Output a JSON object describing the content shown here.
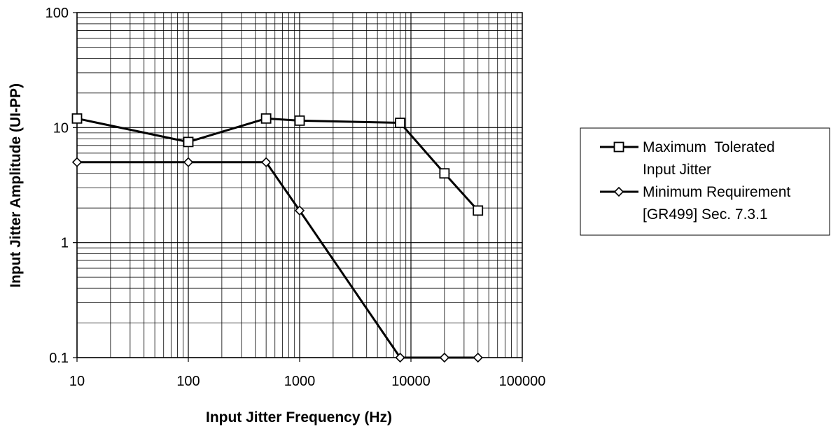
{
  "chart_data": {
    "type": "line",
    "xscale": "log",
    "yscale": "log",
    "xlim": [
      10,
      100000
    ],
    "ylim": [
      0.1,
      100
    ],
    "xlabel": "Input Jitter Frequency (Hz)",
    "ylabel": "Input Jitter Amplitude (UI-PP)",
    "x_ticks": [
      "10",
      "100",
      "1000",
      "10000",
      "100000"
    ],
    "y_ticks": [
      "0.1",
      "1",
      "10",
      "100"
    ],
    "grid": true,
    "legend_position": "right",
    "series": [
      {
        "name_lines": [
          "Maximum  Tolerated",
          "Input Jitter"
        ],
        "marker": "square",
        "color": "#000000",
        "x": [
          10,
          100,
          500,
          1000,
          8000,
          20000,
          40000
        ],
        "y": [
          12,
          7.5,
          12,
          11.5,
          11,
          4,
          1.9
        ]
      },
      {
        "name_lines": [
          "Minimum Requirement",
          "[GR499] Sec. 7.3.1"
        ],
        "marker": "diamond",
        "color": "#000000",
        "x": [
          10,
          100,
          500,
          1000,
          8000,
          20000,
          40000
        ],
        "y": [
          5,
          5,
          5,
          1.9,
          0.1,
          0.1,
          0.1
        ]
      }
    ]
  }
}
